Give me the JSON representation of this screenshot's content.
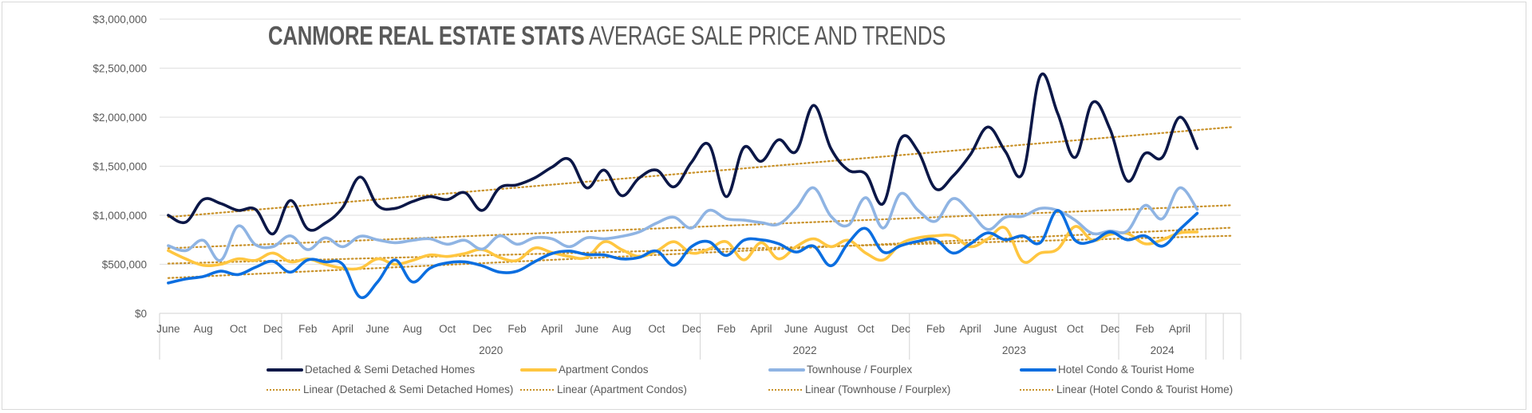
{
  "chart_data": {
    "type": "line",
    "title": {
      "bold": "CANMORE REAL ESTATE STATS",
      "light": " AVERAGE SALE PRICE AND TRENDS"
    },
    "xlabel": "",
    "ylabel": "",
    "ylim": [
      0,
      3000000
    ],
    "y_ticks": [
      {
        "value": 0,
        "label": "$0"
      },
      {
        "value": 500000,
        "label": "$500,000"
      },
      {
        "value": 1000000,
        "label": "$1,000,000"
      },
      {
        "value": 1500000,
        "label": "$1,500,000"
      },
      {
        "value": 2000000,
        "label": "$2,000,000"
      },
      {
        "value": 2500000,
        "label": "$2,500,000"
      },
      {
        "value": 3000000,
        "label": "$3,000,000"
      }
    ],
    "grid": true,
    "smoothed": true,
    "total_categories": 62,
    "x": [
      "2019-06",
      "2019-07",
      "2019-08",
      "2019-09",
      "2019-10",
      "2019-11",
      "2019-12",
      "2020-01",
      "2020-02",
      "2020-03",
      "2020-04",
      "2020-05",
      "2020-06",
      "2020-07",
      "2020-08",
      "2020-09",
      "2020-10",
      "2020-11",
      "2020-12",
      "2021-01",
      "2021-02",
      "2021-03",
      "2021-04",
      "2021-05",
      "2021-06",
      "2021-07",
      "2021-08",
      "2021-09",
      "2021-10",
      "2021-11",
      "2021-12",
      "2022-01",
      "2022-02",
      "2022-03",
      "2022-04",
      "2022-05",
      "2022-06",
      "2022-07",
      "2022-08",
      "2022-09",
      "2022-10",
      "2022-11",
      "2022-12",
      "2023-01",
      "2023-02",
      "2023-03",
      "2023-04",
      "2023-05",
      "2023-06",
      "2023-07",
      "2023-08",
      "2023-09",
      "2023-10",
      "2023-11",
      "2023-12",
      "2024-01",
      "2024-02",
      "2024-03",
      "2024-04",
      "2024-05"
    ],
    "x_tick_labels": [
      {
        "index": 0,
        "label": "June"
      },
      {
        "index": 2,
        "label": "Aug"
      },
      {
        "index": 4,
        "label": "Oct"
      },
      {
        "index": 6,
        "label": "Dec"
      },
      {
        "index": 8,
        "label": "Feb"
      },
      {
        "index": 10,
        "label": "April"
      },
      {
        "index": 12,
        "label": "June"
      },
      {
        "index": 14,
        "label": "Aug"
      },
      {
        "index": 16,
        "label": "Oct"
      },
      {
        "index": 18,
        "label": "Dec"
      },
      {
        "index": 20,
        "label": "Feb"
      },
      {
        "index": 22,
        "label": "April"
      },
      {
        "index": 24,
        "label": "June"
      },
      {
        "index": 26,
        "label": "Aug"
      },
      {
        "index": 28,
        "label": "Oct"
      },
      {
        "index": 30,
        "label": "Dec"
      },
      {
        "index": 32,
        "label": "Feb"
      },
      {
        "index": 34,
        "label": "April"
      },
      {
        "index": 36,
        "label": "June"
      },
      {
        "index": 38,
        "label": "August"
      },
      {
        "index": 40,
        "label": "Oct"
      },
      {
        "index": 42,
        "label": "Dec"
      },
      {
        "index": 44,
        "label": "Feb"
      },
      {
        "index": 46,
        "label": "April"
      },
      {
        "index": 48,
        "label": "June"
      },
      {
        "index": 50,
        "label": "August"
      },
      {
        "index": 52,
        "label": "Oct"
      },
      {
        "index": 54,
        "label": "Dec"
      },
      {
        "index": 56,
        "label": "Feb"
      },
      {
        "index": 58,
        "label": "April"
      }
    ],
    "year_groups": [
      {
        "label": "",
        "start": 0,
        "end": 7
      },
      {
        "label": "2020",
        "start": 7,
        "end": 31
      },
      {
        "label": "2022",
        "start": 31,
        "end": 43
      },
      {
        "label": "2023",
        "start": 43,
        "end": 55
      },
      {
        "label": "2024",
        "start": 55,
        "end": 60
      },
      {
        "label": "",
        "start": 60,
        "end": 61
      },
      {
        "label": "",
        "start": 61,
        "end": 62
      }
    ],
    "series": [
      {
        "name": "Detached & Semi Detached Homes",
        "color": "#0b1747",
        "values": [
          1000000,
          930000,
          1160000,
          1120000,
          1050000,
          1060000,
          810000,
          1150000,
          860000,
          920000,
          1080000,
          1390000,
          1100000,
          1070000,
          1140000,
          1190000,
          1160000,
          1230000,
          1050000,
          1280000,
          1310000,
          1380000,
          1490000,
          1570000,
          1280000,
          1460000,
          1200000,
          1380000,
          1460000,
          1290000,
          1540000,
          1720000,
          1190000,
          1690000,
          1550000,
          1770000,
          1650000,
          2120000,
          1680000,
          1460000,
          1420000,
          1120000,
          1780000,
          1650000,
          1270000,
          1400000,
          1620000,
          1900000,
          1650000,
          1430000,
          2420000,
          2040000,
          1590000,
          2150000,
          1880000,
          1350000,
          1630000,
          1590000,
          2000000,
          1680000
        ]
      },
      {
        "name": "Apartment Condos",
        "color": "#ffc640",
        "values": [
          640000,
          555000,
          490000,
          500000,
          555000,
          540000,
          615000,
          525000,
          555000,
          500000,
          460000,
          460000,
          555000,
          500000,
          540000,
          595000,
          580000,
          610000,
          650000,
          570000,
          540000,
          665000,
          620000,
          580000,
          570000,
          730000,
          650000,
          580000,
          635000,
          730000,
          615000,
          655000,
          730000,
          545000,
          720000,
          555000,
          680000,
          760000,
          680000,
          745000,
          615000,
          545000,
          710000,
          770000,
          790000,
          790000,
          680000,
          760000,
          870000,
          530000,
          615000,
          655000,
          885000,
          745000,
          805000,
          815000,
          710000,
          750000,
          820000,
          830000
        ]
      },
      {
        "name": "Townhouse / Fourplex",
        "color": "#8fb4e3",
        "values": [
          690000,
          640000,
          745000,
          540000,
          890000,
          700000,
          680000,
          790000,
          650000,
          770000,
          680000,
          785000,
          750000,
          720000,
          745000,
          760000,
          705000,
          745000,
          655000,
          790000,
          705000,
          770000,
          760000,
          680000,
          770000,
          760000,
          785000,
          830000,
          920000,
          980000,
          870000,
          1050000,
          965000,
          950000,
          925000,
          910000,
          1070000,
          1280000,
          990000,
          900000,
          1180000,
          870000,
          1220000,
          1050000,
          940000,
          1170000,
          1030000,
          855000,
          980000,
          990000,
          1070000,
          1050000,
          950000,
          815000,
          840000,
          840000,
          1100000,
          965000,
          1280000,
          1060000
        ]
      },
      {
        "name": "Hotel Condo & Tourist Home",
        "color": "#0b6ee0",
        "values": [
          310000,
          350000,
          375000,
          430000,
          395000,
          470000,
          530000,
          420000,
          545000,
          525000,
          500000,
          165000,
          320000,
          545000,
          320000,
          460000,
          515000,
          525000,
          485000,
          420000,
          430000,
          525000,
          610000,
          635000,
          600000,
          595000,
          555000,
          570000,
          635000,
          490000,
          680000,
          730000,
          590000,
          745000,
          750000,
          710000,
          625000,
          685000,
          485000,
          720000,
          865000,
          625000,
          690000,
          735000,
          750000,
          615000,
          710000,
          820000,
          750000,
          790000,
          720000,
          1050000,
          745000,
          735000,
          830000,
          750000,
          790000,
          685000,
          855000,
          1020000
        ]
      }
    ],
    "trendlines": {
      "type": "linear",
      "color": "#c9922a",
      "style": "dotted",
      "forward_periods": 2
    },
    "legend": {
      "position": "bottom",
      "entries": [
        {
          "label": "Detached & Semi Detached Homes",
          "kind": "line",
          "color": "#0b1747"
        },
        {
          "label": "Apartment Condos",
          "kind": "line",
          "color": "#ffc640"
        },
        {
          "label": "Townhouse / Fourplex",
          "kind": "line",
          "color": "#8fb4e3"
        },
        {
          "label": "Hotel Condo & Tourist Home",
          "kind": "line",
          "color": "#0b6ee0"
        },
        {
          "label": "Linear (Detached & Semi Detached Homes)",
          "kind": "trend",
          "color": "#c9922a"
        },
        {
          "label": "Linear (Apartment Condos)",
          "kind": "trend",
          "color": "#c9922a"
        },
        {
          "label": "Linear (Townhouse / Fourplex)",
          "kind": "trend",
          "color": "#c9922a"
        },
        {
          "label": "Linear (Hotel Condo & Tourist Home)",
          "kind": "trend",
          "color": "#c9922a"
        }
      ]
    }
  }
}
